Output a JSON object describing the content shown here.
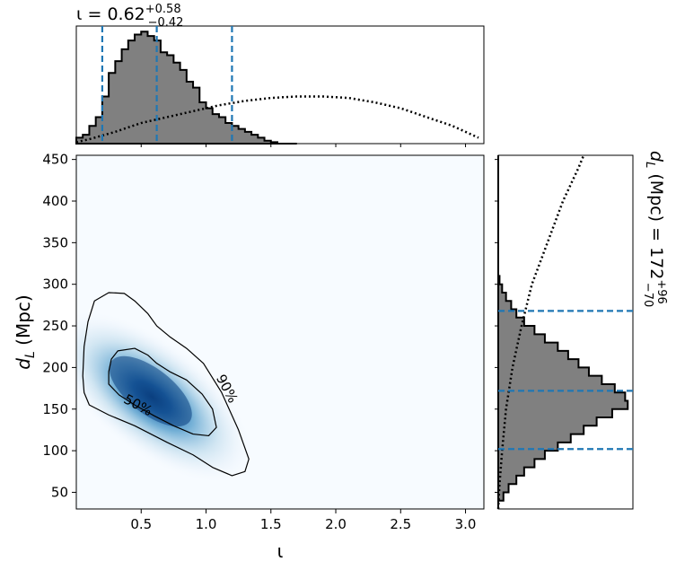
{
  "chart_data": [
    {
      "type": "histogram",
      "panel": "top-marginal",
      "title_symbol": "ι",
      "title_value": "0.62",
      "title_plus": "+0.58",
      "title_minus": "−0.42",
      "xlim": [
        0.0,
        3.14159
      ],
      "quantile_lines": [
        0.2,
        0.62,
        1.2
      ],
      "bin_width": 0.05,
      "filled_histogram": {
        "bin_start": 0.0,
        "counts": [
          4,
          6,
          12,
          18,
          32,
          48,
          56,
          64,
          70,
          74,
          76,
          73,
          70,
          62,
          60,
          55,
          50,
          42,
          38,
          28,
          24,
          20,
          18,
          14,
          12,
          10,
          8,
          6,
          4,
          2,
          1,
          0,
          0,
          0
        ]
      },
      "prior_histogram": {
        "points": [
          [
            0.0,
            1
          ],
          [
            0.1,
            3
          ],
          [
            0.3,
            8
          ],
          [
            0.5,
            14
          ],
          [
            0.7,
            18
          ],
          [
            0.9,
            22
          ],
          [
            1.1,
            26
          ],
          [
            1.3,
            29
          ],
          [
            1.5,
            31
          ],
          [
            1.7,
            32
          ],
          [
            1.9,
            32
          ],
          [
            2.1,
            31
          ],
          [
            2.3,
            28
          ],
          [
            2.5,
            24
          ],
          [
            2.7,
            18
          ],
          [
            2.9,
            12
          ],
          [
            3.1,
            4
          ]
        ]
      }
    },
    {
      "type": "heatmap",
      "panel": "joint",
      "xlabel": "ι",
      "ylabel_symbol": "d",
      "ylabel_sub": "L",
      "ylabel_unit": "(Mpc)",
      "xlim": [
        0.0,
        3.14159
      ],
      "ylim": [
        30,
        455
      ],
      "xticks": [
        0.5,
        1.0,
        1.5,
        2.0,
        2.5,
        3.0
      ],
      "xtick_labels": [
        "0.5",
        "1.0",
        "1.5",
        "2.0",
        "2.5",
        "3.0"
      ],
      "yticks": [
        50,
        100,
        150,
        200,
        250,
        300,
        350,
        400,
        450
      ],
      "ytick_labels": [
        "50",
        "100",
        "150",
        "200",
        "250",
        "300",
        "350",
        "400",
        "450"
      ],
      "density_peak": [
        0.6,
        168
      ],
      "contours": [
        {
          "label": "50%",
          "points": [
            [
              0.25,
              180
            ],
            [
              0.25,
              195
            ],
            [
              0.27,
              210
            ],
            [
              0.32,
              220
            ],
            [
              0.45,
              223
            ],
            [
              0.55,
              215
            ],
            [
              0.62,
              205
            ],
            [
              0.72,
              195
            ],
            [
              0.85,
              185
            ],
            [
              0.97,
              168
            ],
            [
              1.05,
              150
            ],
            [
              1.08,
              128
            ],
            [
              1.02,
              118
            ],
            [
              0.9,
              120
            ],
            [
              0.75,
              130
            ],
            [
              0.6,
              142
            ],
            [
              0.45,
              155
            ],
            [
              0.33,
              167
            ],
            [
              0.25,
              180
            ]
          ]
        },
        {
          "label": "90%",
          "points": [
            [
              0.05,
              190
            ],
            [
              0.06,
              225
            ],
            [
              0.09,
              255
            ],
            [
              0.14,
              280
            ],
            [
              0.25,
              290
            ],
            [
              0.37,
              289
            ],
            [
              0.45,
              280
            ],
            [
              0.55,
              265
            ],
            [
              0.62,
              250
            ],
            [
              0.72,
              237
            ],
            [
              0.85,
              223
            ],
            [
              0.98,
              205
            ],
            [
              1.12,
              170
            ],
            [
              1.25,
              125
            ],
            [
              1.33,
              90
            ],
            [
              1.3,
              75
            ],
            [
              1.2,
              70
            ],
            [
              1.05,
              80
            ],
            [
              0.9,
              95
            ],
            [
              0.7,
              110
            ],
            [
              0.45,
              130
            ],
            [
              0.25,
              143
            ],
            [
              0.1,
              155
            ],
            [
              0.06,
              170
            ],
            [
              0.05,
              190
            ]
          ]
        }
      ]
    },
    {
      "type": "histogram",
      "panel": "right-marginal",
      "orientation": "horizontal",
      "ylim": [
        30,
        455
      ],
      "quantile_lines": [
        102,
        172,
        268
      ],
      "title_symbol": "d",
      "title_sub": "L",
      "title_unit": "(Mpc)",
      "title_value": "172",
      "title_plus": "+96",
      "title_minus": "−70",
      "bin_width": 10,
      "filled_histogram": {
        "bin_start": 30,
        "counts": [
          0,
          4,
          8,
          14,
          20,
          28,
          36,
          46,
          56,
          66,
          76,
          88,
          100,
          98,
          90,
          80,
          70,
          62,
          54,
          46,
          36,
          28,
          20,
          14,
          10,
          6,
          3,
          1,
          0,
          0,
          0,
          0,
          0,
          0,
          0,
          0,
          0,
          0,
          0,
          0,
          0,
          0,
          0
        ]
      },
      "prior_histogram": {
        "points": [
          [
            30,
            0
          ],
          [
            60,
            1
          ],
          [
            100,
            3
          ],
          [
            150,
            6
          ],
          [
            200,
            11
          ],
          [
            250,
            18
          ],
          [
            300,
            26
          ],
          [
            350,
            38
          ],
          [
            400,
            50
          ],
          [
            440,
            62
          ],
          [
            455,
            66
          ]
        ]
      }
    }
  ]
}
